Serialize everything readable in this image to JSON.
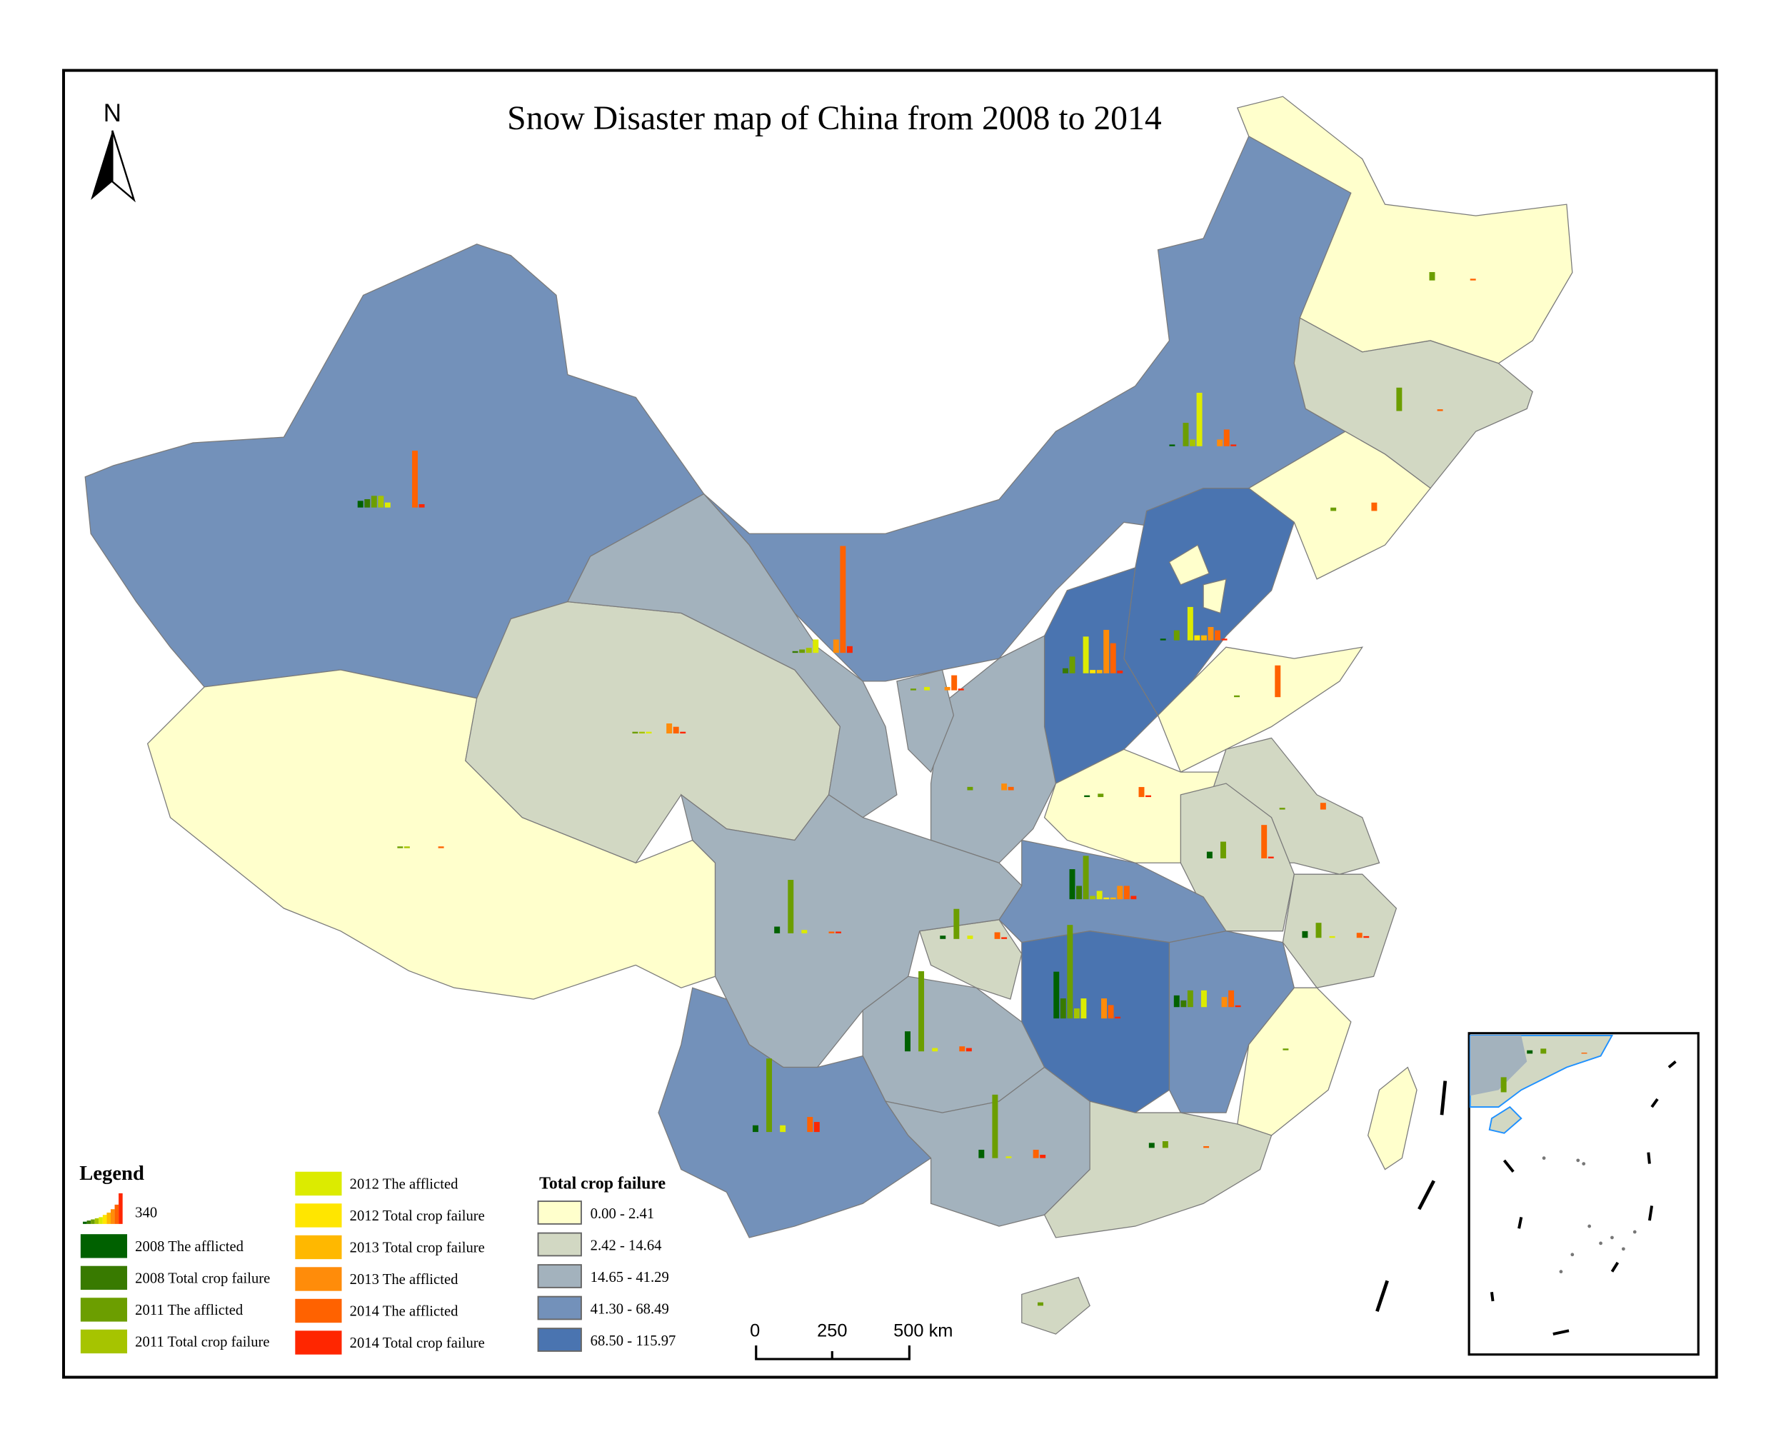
{
  "title": "Snow Disaster map of China from 2008 to 2014",
  "north_arrow": {
    "label": "N",
    "icon": "north-arrow-icon"
  },
  "scale_bar": {
    "ticks": [
      "0",
      "250",
      "500 km"
    ]
  },
  "legend": {
    "title": "Legend",
    "bar_symbol_value": "340",
    "series": [
      {
        "label": "2008 The afflicted",
        "color": "#006100"
      },
      {
        "label": "2008 Total crop failure",
        "color": "#387A00"
      },
      {
        "label": "2011 The afflicted",
        "color": "#6C9E00"
      },
      {
        "label": "2011 Total crop failure",
        "color": "#A6C400"
      },
      {
        "label": "2012 The afflicted",
        "color": "#DCEB00"
      },
      {
        "label": "2012 Total crop failure",
        "color": "#FFE600"
      },
      {
        "label": "2013 Total crop failure",
        "color": "#FFB800"
      },
      {
        "label": "2013 The afflicted",
        "color": "#FF8C0A"
      },
      {
        "label": "2014 The afflicted",
        "color": "#FF6200"
      },
      {
        "label": "2014 Total crop failure",
        "color": "#FF2600"
      }
    ],
    "choropleth_title": "Total crop failure",
    "classes": [
      {
        "label": "0.00 - 2.41",
        "color": "#FFFFCC"
      },
      {
        "label": "2.42 - 14.64",
        "color": "#D2D8C3"
      },
      {
        "label": "14.65 - 41.29",
        "color": "#A3B2BD"
      },
      {
        "label": "41.30 - 68.49",
        "color": "#7391BA"
      },
      {
        "label": "68.50 - 115.97",
        "color": "#4A74B0"
      }
    ]
  },
  "sea_border_color": "#1E90FF",
  "regions": [
    {
      "class": 3,
      "bars": [
        20,
        25,
        35,
        35,
        15,
        0,
        0,
        0,
        170,
        10
      ]
    },
    {
      "class": 0,
      "bars": [
        0,
        0,
        2,
        2,
        0,
        0,
        0,
        0,
        2,
        0
      ]
    },
    {
      "class": 1,
      "bars": [
        0,
        0,
        3,
        3,
        5,
        0,
        0,
        30,
        20,
        3
      ]
    },
    {
      "class": 2,
      "bars": [
        0,
        5,
        10,
        15,
        40,
        0,
        0,
        40,
        320,
        20
      ]
    },
    {
      "class": 3,
      "bars": [
        5,
        0,
        70,
        20,
        160,
        0,
        0,
        20,
        50,
        5
      ]
    },
    {
      "class": 0,
      "bars": [
        0,
        0,
        25,
        0,
        0,
        0,
        0,
        0,
        3,
        0
      ]
    },
    {
      "class": 1,
      "bars": [
        0,
        0,
        70,
        0,
        0,
        0,
        0,
        0,
        3,
        0
      ]
    },
    {
      "class": 0,
      "bars": [
        0,
        0,
        10,
        0,
        0,
        0,
        0,
        0,
        25,
        0
      ]
    },
    {
      "class": 4,
      "bars": [
        5,
        0,
        30,
        0,
        100,
        15,
        15,
        40,
        30,
        5
      ]
    },
    {
      "class": 4,
      "bars": [
        0,
        15,
        50,
        0,
        110,
        10,
        10,
        130,
        90,
        8
      ]
    },
    {
      "class": 2,
      "bars": [
        0,
        0,
        10,
        0,
        0,
        0,
        0,
        20,
        10,
        0
      ]
    },
    {
      "class": 2,
      "bars": [
        0,
        0,
        5,
        0,
        10,
        0,
        0,
        10,
        45,
        5
      ]
    },
    {
      "class": 0,
      "bars": [
        0,
        0,
        5,
        0,
        0,
        0,
        0,
        0,
        95,
        0
      ]
    },
    {
      "class": 0,
      "bars": [
        5,
        0,
        10,
        0,
        0,
        0,
        0,
        0,
        30,
        5
      ]
    },
    {
      "class": 1,
      "bars": [
        0,
        0,
        5,
        0,
        0,
        0,
        0,
        0,
        20,
        0
      ]
    },
    {
      "class": 1,
      "bars": [
        20,
        0,
        50,
        0,
        0,
        0,
        0,
        0,
        100,
        5
      ]
    },
    {
      "class": 1,
      "bars": [
        20,
        0,
        45,
        0,
        5,
        0,
        0,
        0,
        15,
        5
      ]
    },
    {
      "class": 3,
      "bars": [
        90,
        40,
        130,
        10,
        25,
        5,
        5,
        40,
        40,
        10
      ]
    },
    {
      "class": 1,
      "bars": [
        10,
        0,
        90,
        0,
        10,
        0,
        0,
        0,
        20,
        5
      ]
    },
    {
      "class": 2,
      "bars": [
        20,
        0,
        160,
        0,
        10,
        0,
        0,
        0,
        5,
        3
      ]
    },
    {
      "class": 4,
      "bars": [
        140,
        60,
        280,
        30,
        60,
        0,
        0,
        60,
        40,
        5
      ]
    },
    {
      "class": 3,
      "bars": [
        35,
        20,
        50,
        0,
        50,
        0,
        0,
        30,
        50,
        5
      ]
    },
    {
      "class": 0,
      "bars": [
        0,
        0,
        5,
        0,
        0,
        0,
        0,
        0,
        0,
        0
      ]
    },
    {
      "class": 2,
      "bars": [
        60,
        0,
        240,
        0,
        10,
        0,
        0,
        0,
        15,
        10
      ]
    },
    {
      "class": 3,
      "bars": [
        20,
        0,
        220,
        0,
        20,
        0,
        0,
        0,
        45,
        30
      ]
    },
    {
      "class": 2,
      "bars": [
        25,
        0,
        190,
        0,
        5,
        0,
        0,
        0,
        25,
        10
      ]
    },
    {
      "class": 1,
      "bars": [
        15,
        0,
        20,
        0,
        0,
        0,
        0,
        0,
        5,
        0
      ]
    },
    {
      "class": 1,
      "bars": [
        0,
        0,
        10,
        0,
        0,
        0,
        0,
        0,
        0,
        0
      ]
    },
    {
      "class": 0,
      "bars": []
    },
    {
      "class": 0,
      "bars": []
    },
    {
      "class": 0,
      "bars": []
    }
  ]
}
